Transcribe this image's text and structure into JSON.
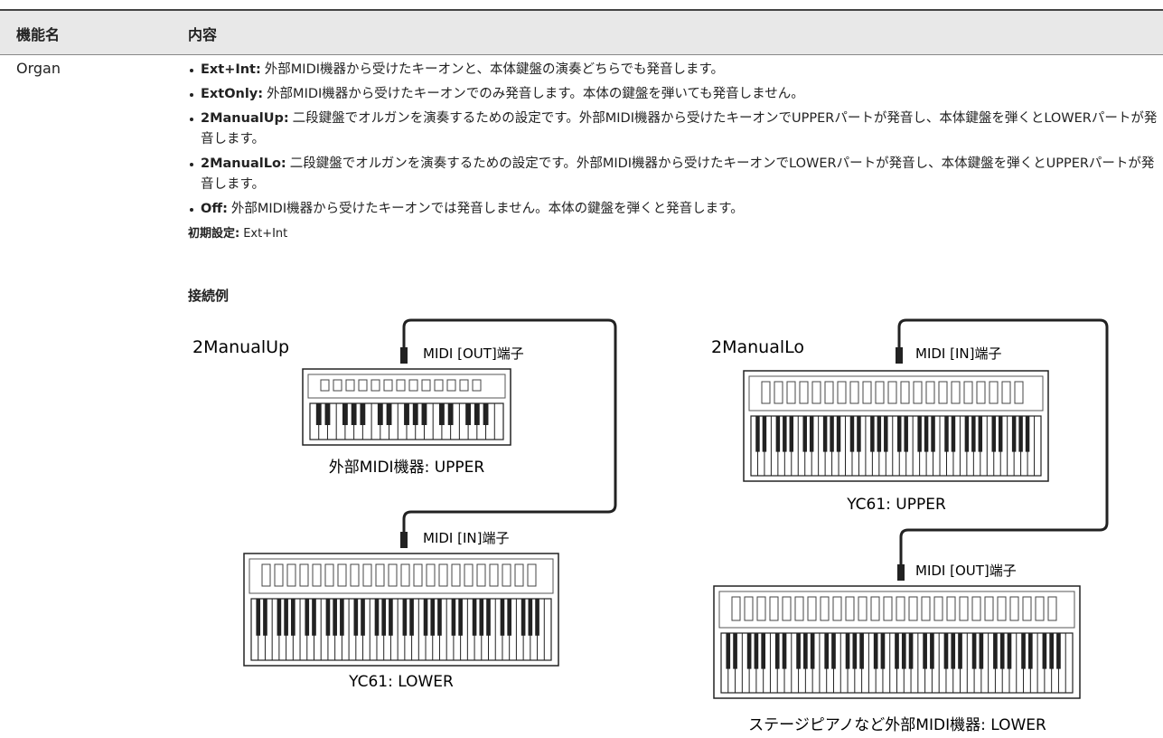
{
  "table": {
    "headers": [
      "機能名",
      "内容"
    ],
    "rows": [
      {
        "name": "Organ",
        "items": [
          {
            "label": "Ext+Int:",
            "text": "外部MIDI機器から受けたキーオンと、本体鍵盤の演奏どちらでも発音します。"
          },
          {
            "label": "ExtOnly:",
            "text": "外部MIDI機器から受けたキーオンでのみ発音します。本体の鍵盤を弾いても発音しません。"
          },
          {
            "label": "2ManualUp:",
            "text": "二段鍵盤でオルガンを演奏するための設定です。外部MIDI機器から受けたキーオンでUPPERパートが発音し、本体鍵盤を弾くとLOWERパートが発音します。"
          },
          {
            "label": "2ManualLo:",
            "text": "二段鍵盤でオルガンを演奏するための設定です。外部MIDI機器から受けたキーオンでLOWERパートが発音し、本体鍵盤を弾くとUPPERパートが発音します。"
          },
          {
            "label": "Off:",
            "text": "外部MIDI機器から受けたキーオンでは発音しません。本体の鍵盤を弾くと発音します。"
          }
        ],
        "default": {
          "label": "初期設定:",
          "value": "Ext+Int"
        },
        "example": {
          "title": "接続例",
          "diagrams": [
            {
              "title": "2ManualUp",
              "port_top": "MIDI [OUT]端子",
              "device_top": "外部MIDI機器: UPPER",
              "port_bottom": "MIDI [IN]端子",
              "device_bottom": "YC61: LOWER"
            },
            {
              "title": "2ManualLo",
              "port_top": "MIDI [IN]端子",
              "device_top": "YC61: UPPER",
              "port_bottom": "MIDI [OUT]端子",
              "device_bottom": "ステージピアノなど外部MIDI機器: LOWER"
            }
          ]
        }
      }
    ]
  }
}
